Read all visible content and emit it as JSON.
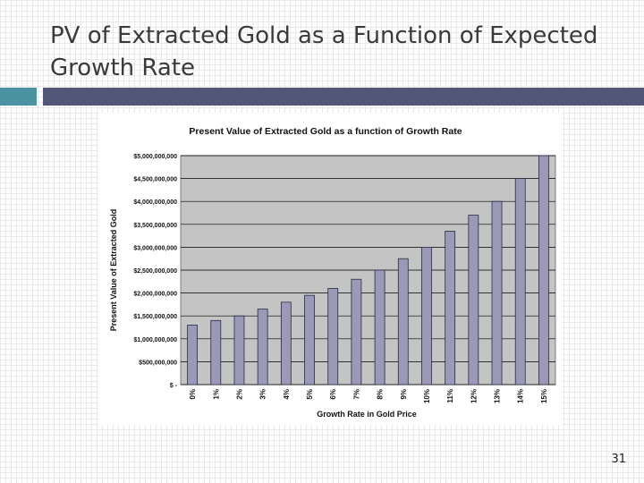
{
  "slide": {
    "title": "PV of Extracted Gold as a Function of Expected Growth Rate",
    "page_number": "31",
    "accent_colors": {
      "left_block": "#4b93a3",
      "rule": "#525778"
    }
  },
  "chart_data": {
    "type": "bar",
    "title": "Present Value of Extracted Gold as a function of Growth Rate",
    "xlabel": "Growth Rate in Gold Price",
    "ylabel": "Present Value of Extracted Gold",
    "categories": [
      "0%",
      "1%",
      "2%",
      "3%",
      "4%",
      "5%",
      "6%",
      "7%",
      "8%",
      "9%",
      "10%",
      "11%",
      "12%",
      "13%",
      "14%",
      "15%"
    ],
    "values": [
      1300000,
      1400000,
      1500000,
      1650000,
      1800000,
      1950000,
      2100000,
      2300000,
      2500000,
      2750000,
      3000000,
      3350000,
      3700000,
      4000000,
      4500000,
      5000000
    ],
    "yticks": [
      0,
      500000,
      1000000,
      1500000,
      2000000,
      2500000,
      3000000,
      3500000,
      4000000,
      4500000,
      5000000
    ],
    "ytick_labels": [
      "$ -",
      "$500,000,000",
      "$1,000,000,000",
      "$1,500,000,000",
      "$2,000,000,000",
      "$2,500,000,000",
      "$3,000,000,000",
      "$3,500,000,000",
      "$4,000,000,000",
      "$4,500,000,000",
      "$5,000,000,000"
    ],
    "ylim": [
      0,
      5000000
    ],
    "grid": true,
    "bar_color": "#9a9ab8",
    "plot_bg": "#c4c4c4"
  }
}
